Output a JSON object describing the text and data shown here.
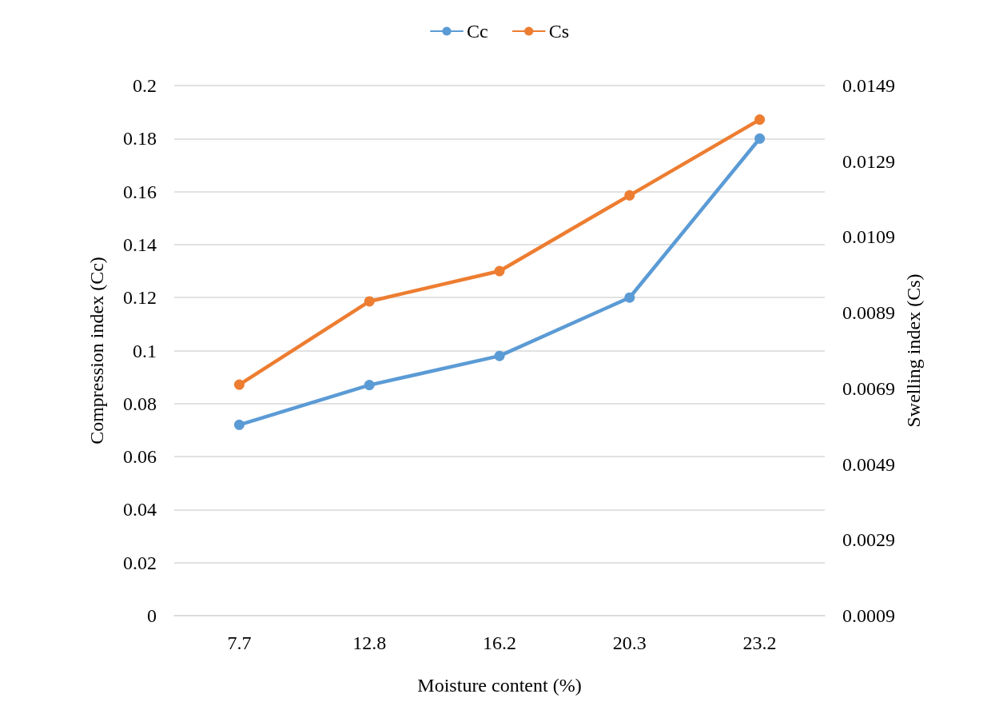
{
  "chart_data": {
    "type": "line",
    "categories": [
      "7.7",
      "12.8",
      "16.2",
      "20.3",
      "23.2"
    ],
    "series": [
      {
        "name": "Cc",
        "color": "#5b9bd5",
        "values": [
          0.072,
          0.087,
          0.098,
          0.12,
          0.18
        ]
      },
      {
        "name": "Cs",
        "color": "#ed7d31",
        "axis": "y2",
        "values": [
          0.007,
          0.0092,
          0.01,
          0.012,
          0.014
        ]
      }
    ],
    "xlabel": "Moisture content (%)",
    "ylabel": "Compression index (Cc)",
    "y2label": "Swelling index (Cs)",
    "ylim": [
      0,
      0.2
    ],
    "yticks": [
      0,
      0.02,
      0.04,
      0.06,
      0.08,
      0.1,
      0.12,
      0.14,
      0.16,
      0.18,
      0.2
    ],
    "y2lim": [
      0.0009,
      0.0149
    ],
    "y2ticks": [
      0.0009,
      0.0029,
      0.0049,
      0.0069,
      0.0089,
      0.0109,
      0.0129,
      0.0149
    ],
    "grid": "y",
    "legend": "top",
    "marker": "circle",
    "line_style": "solid"
  }
}
